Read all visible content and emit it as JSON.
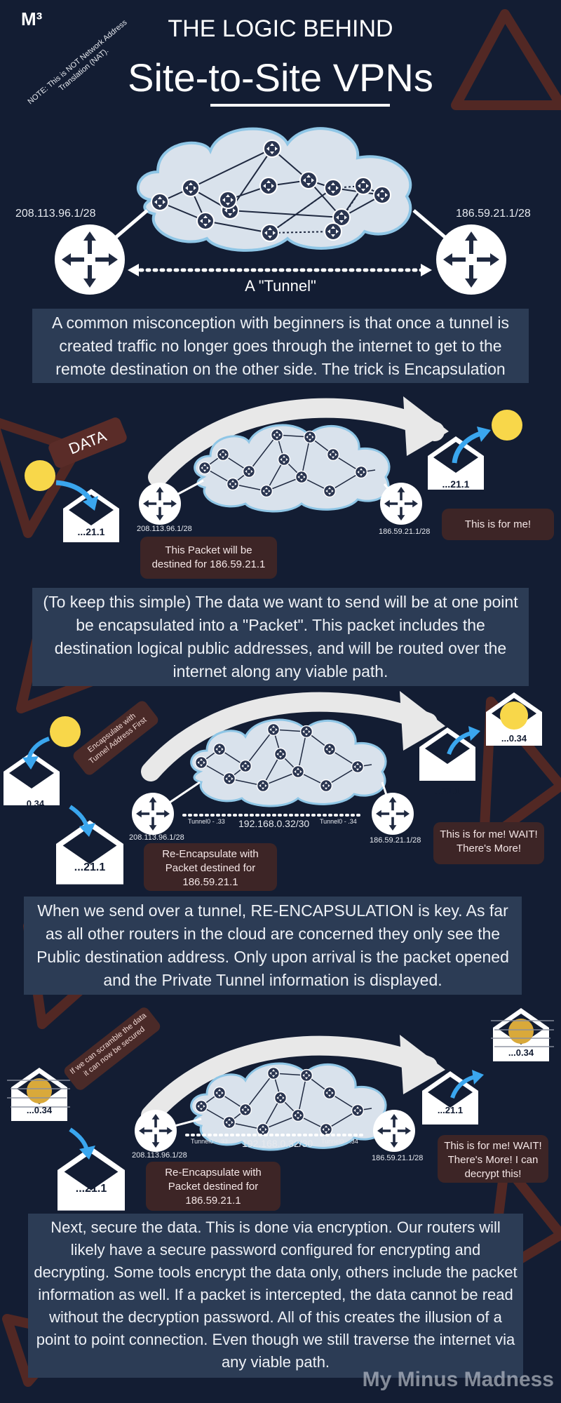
{
  "logo": "M³",
  "title_small": "THE LOGIC BEHIND",
  "title_large": "Site-to-Site VPNs",
  "nat_note": "NOTE: This is NOT Network Address Translation (NAT).",
  "section1": {
    "left_addr": "208.113.96.1/28",
    "right_addr": "186.59.21.1/28",
    "tunnel_label": "A \"Tunnel\"",
    "text": "A common misconception with beginners is that once a tunnel is created traffic no longer goes through the internet to get to the remote destination on the other side. The trick is Encapsulation"
  },
  "section2": {
    "data_tag": "DATA",
    "left_addr": "208.113.96.1/28",
    "right_addr": "186.59.21.1/28",
    "envelope_left": "...21.1",
    "envelope_right": "...21.1",
    "callout_left": "This Packet will be destined for 186.59.21.1",
    "callout_right": "This is for me!",
    "text": "(To keep this simple) The data we want to send will be at one point be encapsulated into a \"Packet\". This packet includes the destination logical public addresses, and will be routed over the internet along any viable path."
  },
  "section3": {
    "rot_callout": "Encapsulate with Tunnel Address First",
    "envelope_small_left": "...0.34",
    "envelope_big_left": "...21.1",
    "envelope_right": "...21.1",
    "envelope_top_right": "...0.34",
    "left_addr": "208.113.96.1/28",
    "right_addr": "186.59.21.1/28",
    "tunnel_left": "Tunnel0 - .33",
    "tunnel_right": "Tunnel0 - .34",
    "subnet": "192.168.0.32/30",
    "callout_left": "Re-Encapsulate with Packet destined for 186.59.21.1",
    "callout_right": "This is for me! WAIT! There's More!",
    "text": "When we send over a tunnel, RE-ENCAPSULATION is key. As far as all other routers in the cloud are concerned they only see the Public destination address. Only upon arrival is the packet opened and the Private Tunnel information is displayed."
  },
  "section4": {
    "rot_callout": "If we can scramble the data it can now be secured",
    "envelope_small_left": "...0.34",
    "envelope_big_left": "...21.1",
    "envelope_right": "...21.1",
    "envelope_top_right": "...0.34",
    "left_addr": "208.113.96.1/28",
    "right_addr": "186.59.21.1/28",
    "tunnel_left": "Tunnel0 - .33",
    "tunnel_right": "Tunnel0 - .34",
    "subnet": "192.168.0.32/30",
    "callout_left": "Re-Encapsulate with Packet destined for 186.59.21.1",
    "callout_right": "This is for me! WAIT! There's More! I can decrypt this!",
    "text": "Next, secure the data. This is done via encryption. Our routers will likely have a secure password configured for encrypting and decrypting. Some tools encrypt the data only, others include the packet information as well. If a packet is intercepted, the data cannot be read without the decryption password. All of this creates the illusion of a point to point connection. Even though we still traverse the internet via any viable path."
  },
  "footer_brand": "My Minus Madness",
  "colors": {
    "background": "#131d33",
    "textbox": "#2c3c55",
    "callout": "#3d2526",
    "cloud": "#d9e2ec",
    "cloud_border": "#8fc6e6",
    "router_node": "#2a3550",
    "arrow": "#e8e8e8",
    "blue_arrow": "#3aa6ee",
    "sun": "#f8d74a",
    "decor": "#5e2a22"
  }
}
